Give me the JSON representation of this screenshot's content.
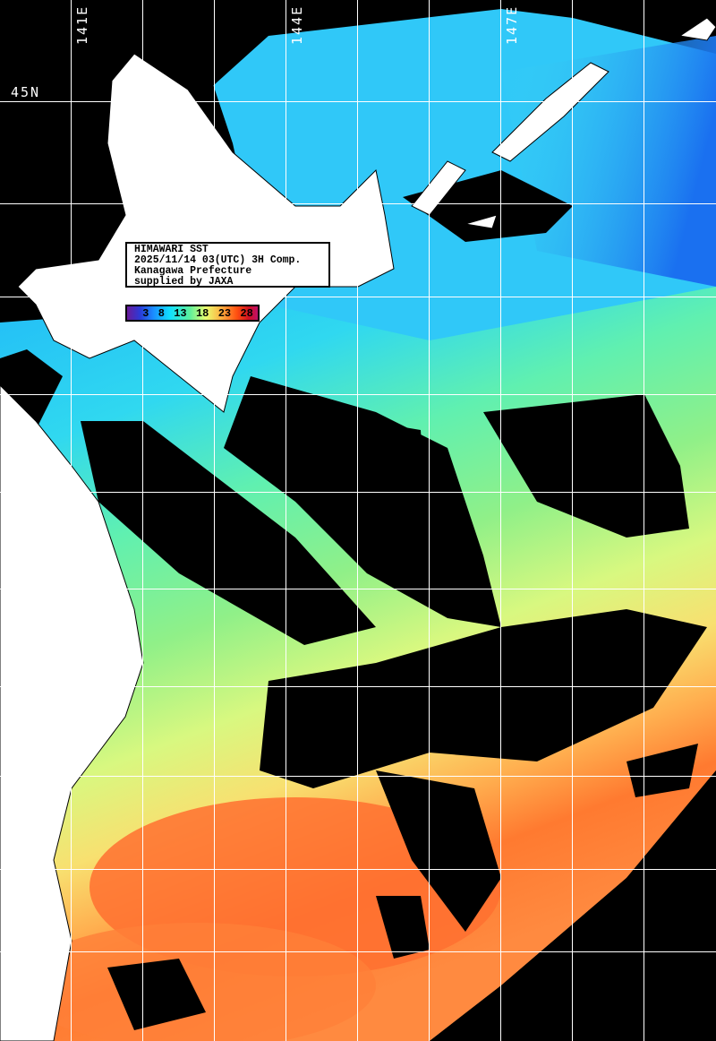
{
  "title": "HIMAWARI SST",
  "legend": {
    "lines": [
      "HIMAWARI SST",
      "2025/11/14 03(UTC) 3H Comp.",
      "Kanagawa Prefecture",
      "supplied by JAXA"
    ]
  },
  "colorbar": {
    "ticks": [
      "3",
      "8",
      "13",
      "18",
      "23",
      "28"
    ],
    "colors": [
      "#6a1a9a",
      "#1a8cff",
      "#10e0ff",
      "#5cf09c",
      "#e8ff70",
      "#ffb040",
      "#ff5010",
      "#c0106a"
    ]
  },
  "grid": {
    "lon_labels": [
      "141E",
      "144E",
      "147E"
    ],
    "lat_labels": [
      "45N"
    ]
  },
  "colors": {
    "land": "#ffffff",
    "cloud_no_data": "#000000",
    "grid": "#ffffff"
  }
}
